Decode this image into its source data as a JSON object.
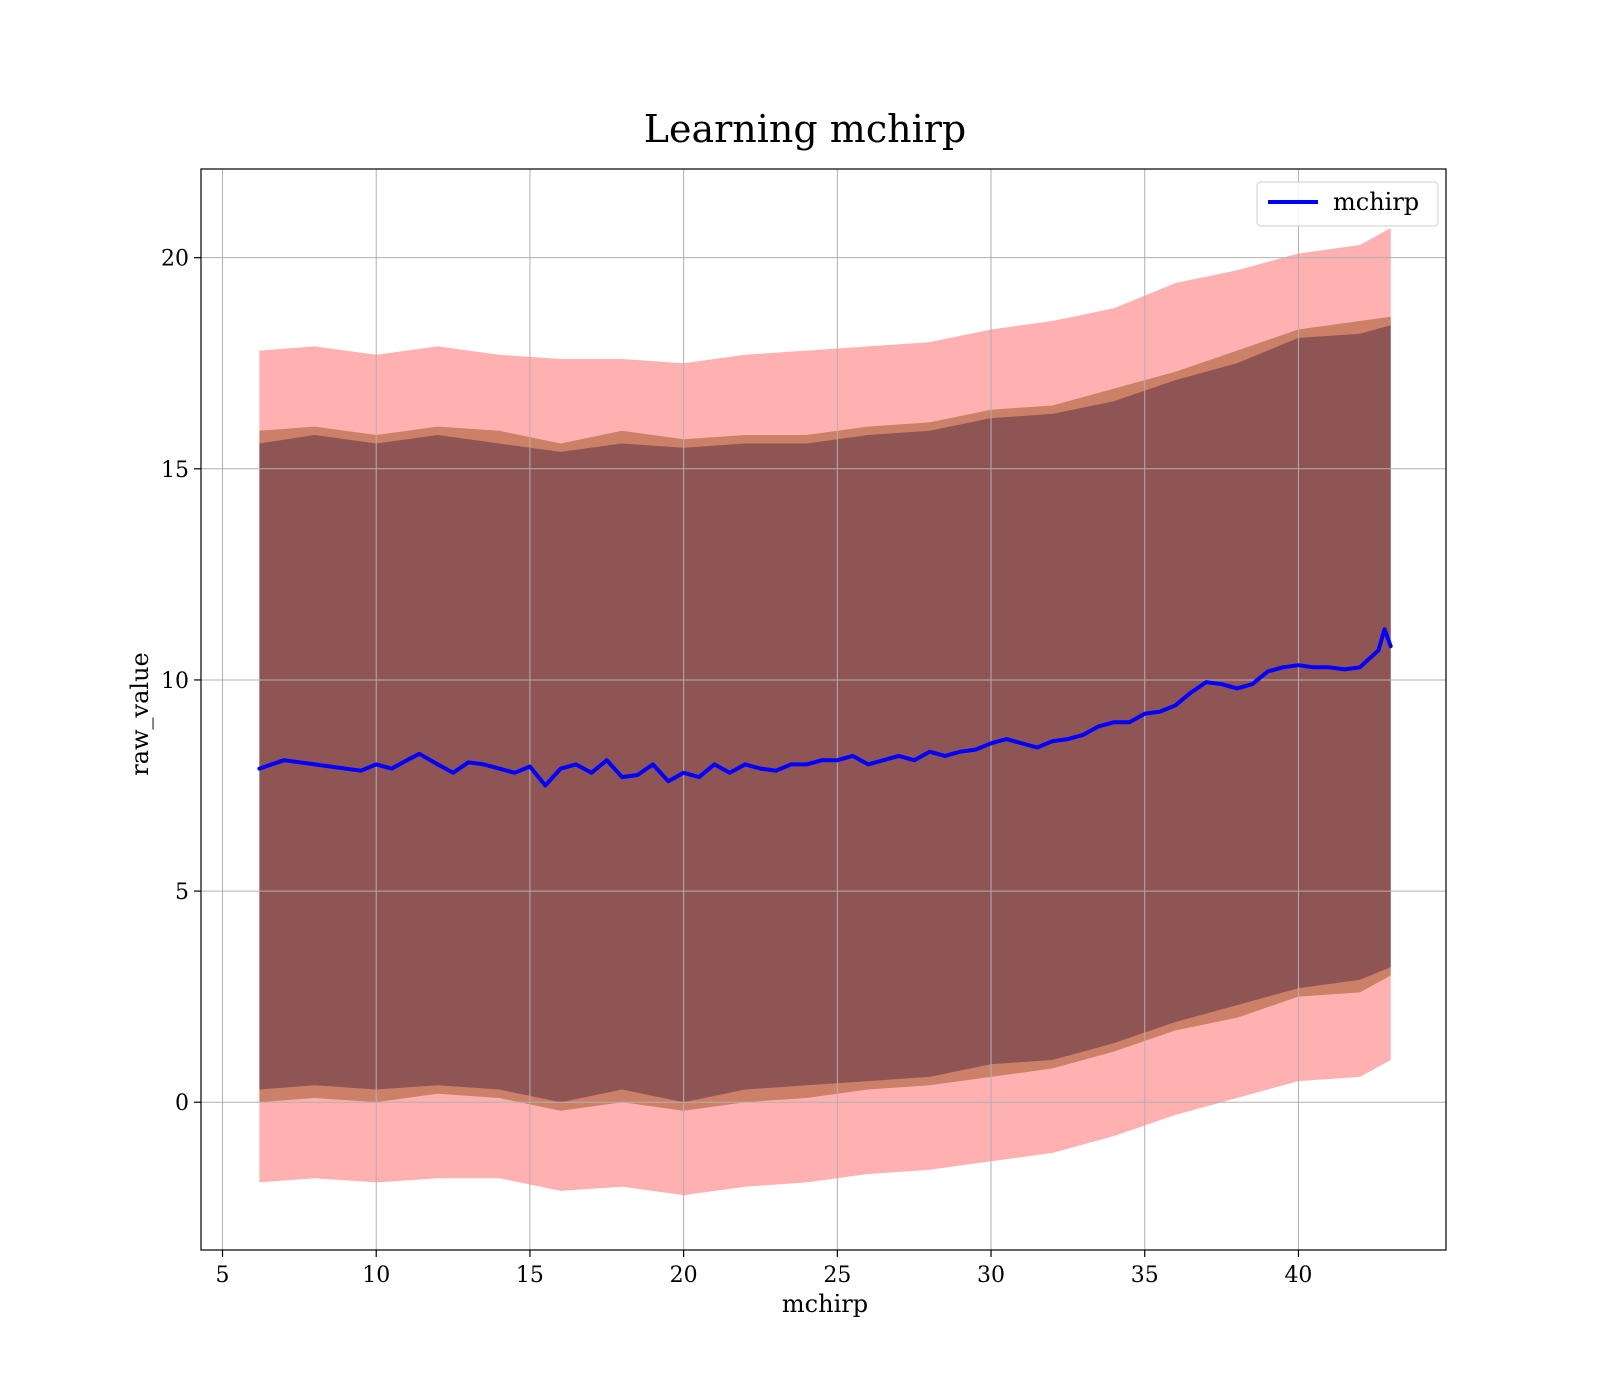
{
  "chart_data": {
    "type": "line",
    "title": "Learning mchirp",
    "xlabel": "mchirp",
    "ylabel": "raw_value",
    "xlim": [
      4.3,
      44.8
    ],
    "ylim": [
      -3.5,
      22.1
    ],
    "xticks": [
      5,
      10,
      15,
      20,
      25,
      30,
      35,
      40
    ],
    "yticks": [
      0,
      5,
      10,
      15,
      20
    ],
    "grid": true,
    "legend_position": "top-right",
    "colors": {
      "line": "#0000ff",
      "outer_band": "#ff7f7f",
      "middle_band": "#a05a2c",
      "inner_band": "#6b3a4a",
      "grid": "#b0b0b0"
    },
    "series": [
      {
        "name": "mchirp",
        "x": [
          6.2,
          7,
          8,
          9,
          9.5,
          10,
          10.5,
          11,
          11.4,
          12,
          12.5,
          13,
          13.5,
          14,
          14.5,
          15,
          15.5,
          16,
          16.5,
          17,
          17.5,
          18,
          18.5,
          19,
          19.5,
          20,
          20.5,
          21,
          21.5,
          22,
          22.5,
          23,
          23.5,
          24,
          24.5,
          25,
          25.5,
          26,
          26.5,
          27,
          27.5,
          28,
          28.5,
          29,
          29.5,
          30,
          30.5,
          31,
          31.5,
          32,
          32.5,
          33,
          33.5,
          34,
          34.5,
          35,
          35.5,
          36,
          36.5,
          37,
          37.5,
          38,
          38.5,
          39,
          39.5,
          40,
          40.5,
          41,
          41.5,
          42,
          42.3,
          42.6,
          42.8,
          43
        ],
        "y": [
          7.9,
          8.1,
          8.0,
          7.9,
          7.85,
          8.0,
          7.9,
          8.1,
          8.25,
          8.0,
          7.8,
          8.05,
          8.0,
          7.9,
          7.8,
          7.95,
          7.5,
          7.9,
          8.0,
          7.8,
          8.1,
          7.7,
          7.75,
          8.0,
          7.6,
          7.8,
          7.7,
          8.0,
          7.8,
          8.0,
          7.9,
          7.85,
          8.0,
          8.0,
          8.1,
          8.1,
          8.2,
          8.0,
          8.1,
          8.2,
          8.1,
          8.3,
          8.2,
          8.3,
          8.35,
          8.5,
          8.6,
          8.5,
          8.4,
          8.55,
          8.6,
          8.7,
          8.9,
          9.0,
          9.0,
          9.2,
          9.25,
          9.4,
          9.7,
          9.95,
          9.9,
          9.8,
          9.9,
          10.2,
          10.3,
          10.35,
          10.3,
          10.3,
          10.25,
          10.3,
          10.5,
          10.7,
          11.2,
          10.8
        ]
      }
    ],
    "bands": [
      {
        "x": [
          6.2,
          8,
          10,
          12,
          14,
          16,
          18,
          20,
          22,
          24,
          26,
          28,
          30,
          32,
          34,
          36,
          38,
          40,
          42,
          43
        ],
        "upper": [
          17.8,
          17.9,
          17.7,
          17.9,
          17.7,
          17.6,
          17.6,
          17.5,
          17.7,
          17.8,
          17.9,
          18.0,
          18.3,
          18.5,
          18.8,
          19.4,
          19.7,
          20.1,
          20.3,
          20.7
        ],
        "lower": [
          -1.9,
          -1.8,
          -1.9,
          -1.8,
          -1.8,
          -2.1,
          -2.0,
          -2.2,
          -2.0,
          -1.9,
          -1.7,
          -1.6,
          -1.4,
          -1.2,
          -0.8,
          -0.3,
          0.1,
          0.5,
          0.6,
          1.0
        ]
      },
      {
        "x": [
          6.2,
          8,
          10,
          12,
          14,
          16,
          18,
          20,
          22,
          24,
          26,
          28,
          30,
          32,
          34,
          36,
          38,
          40,
          42,
          43
        ],
        "upper": [
          15.9,
          16.0,
          15.8,
          16.0,
          15.9,
          15.6,
          15.9,
          15.7,
          15.8,
          15.8,
          16.0,
          16.1,
          16.4,
          16.5,
          16.9,
          17.3,
          17.8,
          18.3,
          18.5,
          18.6
        ],
        "lower": [
          0.0,
          0.1,
          0.0,
          0.2,
          0.1,
          -0.2,
          0.0,
          -0.2,
          0.0,
          0.1,
          0.3,
          0.4,
          0.6,
          0.8,
          1.2,
          1.7,
          2.0,
          2.5,
          2.6,
          3.0
        ]
      },
      {
        "x": [
          6.2,
          8,
          10,
          12,
          14,
          16,
          18,
          20,
          22,
          24,
          26,
          28,
          30,
          32,
          34,
          36,
          38,
          40,
          42,
          43
        ],
        "upper": [
          15.6,
          15.8,
          15.6,
          15.8,
          15.6,
          15.4,
          15.6,
          15.5,
          15.6,
          15.6,
          15.8,
          15.9,
          16.2,
          16.3,
          16.6,
          17.1,
          17.5,
          18.1,
          18.2,
          18.4
        ],
        "lower": [
          0.3,
          0.4,
          0.3,
          0.4,
          0.3,
          0.0,
          0.3,
          0.0,
          0.3,
          0.4,
          0.5,
          0.6,
          0.9,
          1.0,
          1.4,
          1.9,
          2.3,
          2.7,
          2.9,
          3.2
        ]
      }
    ]
  }
}
